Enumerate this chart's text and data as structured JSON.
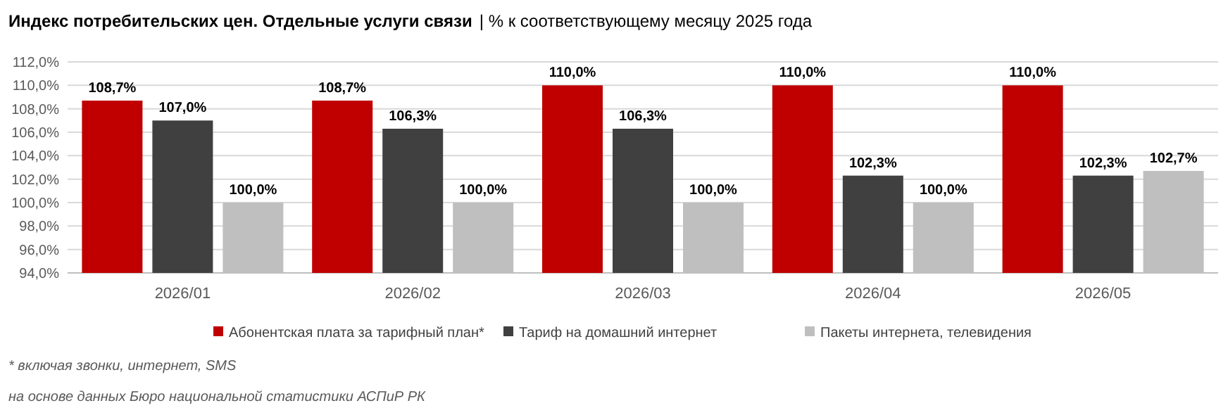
{
  "chart_data": {
    "type": "bar",
    "title": "Индекс потребительских цен. Отдельные услуги связи",
    "subtitle": "| % к соответствующему месяцу 2025 года",
    "categories": [
      "2026/01",
      "2026/02",
      "2026/03",
      "2026/04",
      "2026/05"
    ],
    "series": [
      {
        "name": "Абонентская плата за тарифный план*",
        "color": "#c00000",
        "values": [
          108.7,
          108.7,
          110.0,
          110.0,
          110.0
        ],
        "value_labels": [
          "108,7%",
          "108,7%",
          "110,0%",
          "110,0%",
          "110,0%"
        ]
      },
      {
        "name": "Тариф на домашний интернет",
        "color": "#404040",
        "values": [
          107.0,
          106.3,
          106.3,
          102.3,
          102.3
        ],
        "value_labels": [
          "107,0%",
          "106,3%",
          "106,3%",
          "102,3%",
          "102,3%"
        ]
      },
      {
        "name": "Пакеты интернета, телевидения",
        "color": "#bfbfbf",
        "values": [
          100.0,
          100.0,
          100.0,
          100.0,
          102.7
        ],
        "value_labels": [
          "100,0%",
          "100,0%",
          "100,0%",
          "100,0%",
          "102,7%"
        ]
      }
    ],
    "ylim": [
      94,
      112
    ],
    "yticks": [
      {
        "value": 94,
        "label": "94,0%"
      },
      {
        "value": 96,
        "label": "96,0%"
      },
      {
        "value": 98,
        "label": "98,0%"
      },
      {
        "value": 100,
        "label": "100,0%"
      },
      {
        "value": 102,
        "label": "102,0%"
      },
      {
        "value": 104,
        "label": "104,0%"
      },
      {
        "value": 106,
        "label": "106,0%"
      },
      {
        "value": 108,
        "label": "108,0%"
      },
      {
        "value": 110,
        "label": "110,0%"
      },
      {
        "value": 112,
        "label": "112,0%"
      }
    ],
    "grid": "y",
    "legend": "bottom",
    "annotations": [
      "* включая звонки, интернет, SMS",
      "на основе данных Бюро национальной статистики АСПиР РК"
    ]
  }
}
